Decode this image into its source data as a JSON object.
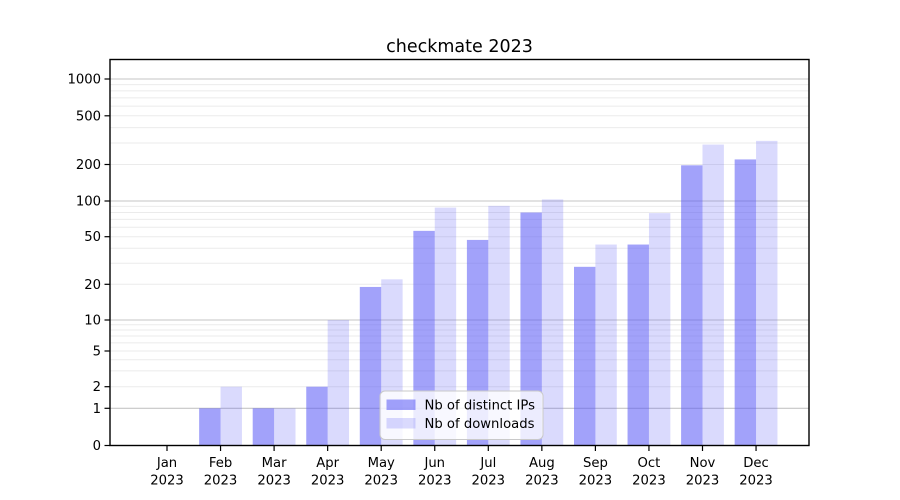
{
  "title": "checkmate 2023",
  "chart_data": {
    "type": "bar",
    "title": "checkmate 2023",
    "categories": [
      "Jan 2023",
      "Feb 2023",
      "Mar 2023",
      "Apr 2023",
      "May 2023",
      "Jun 2023",
      "Jul 2023",
      "Aug 2023",
      "Sep 2023",
      "Oct 2023",
      "Nov 2023",
      "Dec 2023"
    ],
    "series": [
      {
        "name": "Nb of distinct IPs",
        "color": "rgba(85,85,245,0.55)",
        "values": [
          0,
          1,
          1,
          2,
          19,
          56,
          47,
          80,
          28,
          43,
          197,
          220
        ]
      },
      {
        "name": "Nb of downloads",
        "color": "rgba(85,85,245,0.22)",
        "values": [
          0,
          2,
          1,
          10,
          22,
          88,
          91,
          103,
          43,
          79,
          291,
          312
        ]
      }
    ],
    "xlabel": "",
    "ylabel": "",
    "yscale": "symlog",
    "yticks": [
      0,
      1,
      2,
      5,
      10,
      20,
      50,
      100,
      200,
      500,
      1000
    ],
    "ylim": [
      0,
      1500
    ],
    "grid": true,
    "legend_position": "lower center",
    "colors": {
      "bar_dark": "rgba(85,85,245,0.55)",
      "bar_light": "rgba(85,85,245,0.22)",
      "grid_major": "#c6c6c6",
      "grid_minor": "#ebebeb",
      "axis": "#000000",
      "legend_border": "#c9c9c9",
      "legend_bg": "rgba(255,255,255,0.8)"
    }
  }
}
